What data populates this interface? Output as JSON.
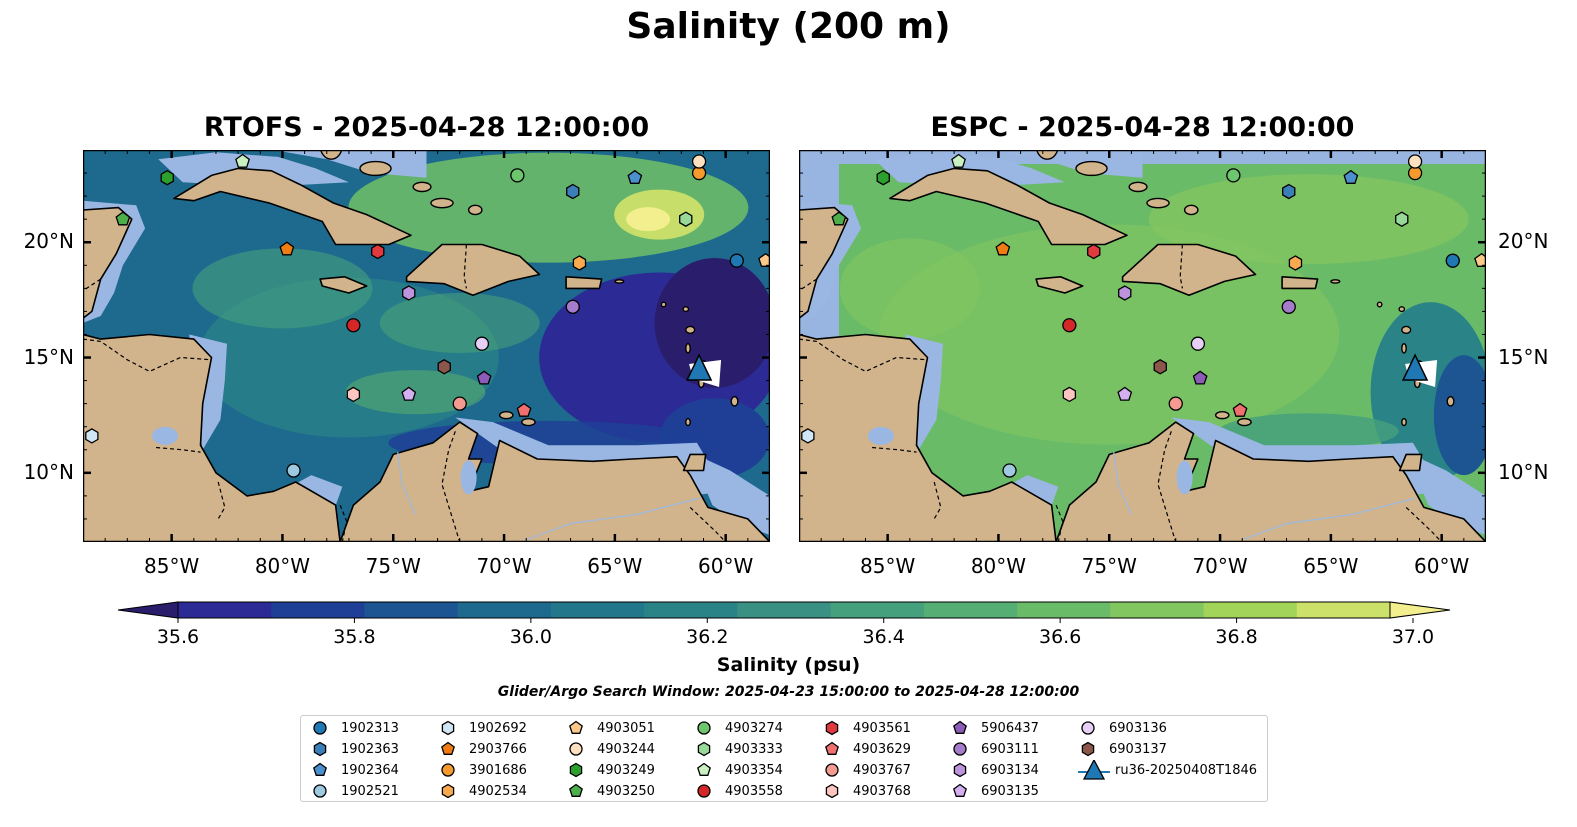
{
  "title": "Salinity (200 m)",
  "panels": [
    {
      "title": "RTOFS - 2025-04-28 12:00:00",
      "model": "rtofs"
    },
    {
      "title": "ESPC - 2025-04-28 12:00:00",
      "model": "espc"
    }
  ],
  "map": {
    "lon_range": [
      -89,
      -58
    ],
    "lat_range": [
      7,
      24
    ],
    "lon_ticks": [
      "85°W",
      "80°W",
      "75°W",
      "70°W",
      "65°W",
      "60°W"
    ],
    "lon_tick_values": [
      -85,
      -80,
      -75,
      -70,
      -65,
      -60
    ],
    "lat_ticks": [
      "20°N",
      "15°N",
      "10°N"
    ],
    "lat_tick_values": [
      20,
      15,
      10
    ]
  },
  "colorbar": {
    "label": "Salinity (psu)",
    "ticks": [
      "35.6",
      "35.8",
      "36.0",
      "36.2",
      "36.4",
      "36.6",
      "36.8",
      "37.0"
    ],
    "tick_values": [
      35.6,
      35.8,
      36.0,
      36.2,
      36.4,
      36.6,
      36.8,
      37.0
    ],
    "range": [
      35.5,
      37.0
    ],
    "colors": [
      "#2a1d6b",
      "#2c2a94",
      "#1f3f96",
      "#1c5592",
      "#1e6a8e",
      "#22778b",
      "#2a8487",
      "#3a9183",
      "#45a07d",
      "#55ae73",
      "#6abb68",
      "#82c660",
      "#a2d45a",
      "#cce16a",
      "#f3ee8e"
    ]
  },
  "search_window": "Glider/Argo Search Window: 2025-04-23 15:00:00 to 2025-04-28 12:00:00",
  "legend": {
    "items": [
      {
        "label": "1902313",
        "marker": "circle",
        "color": "#1f77b4"
      },
      {
        "label": "1902363",
        "marker": "hexagon",
        "color": "#3a7fb8"
      },
      {
        "label": "1902364",
        "marker": "pentagon",
        "color": "#4a8fce"
      },
      {
        "label": "1902521",
        "marker": "circle",
        "color": "#9ecae1"
      },
      {
        "label": "1902692",
        "marker": "hexagon",
        "color": "#d0e6f5"
      },
      {
        "label": "2903766",
        "marker": "pentagon",
        "color": "#ef7d14"
      },
      {
        "label": "3901686",
        "marker": "circle",
        "color": "#f59a2c"
      },
      {
        "label": "4902534",
        "marker": "hexagon",
        "color": "#f9a94f"
      },
      {
        "label": "4903051",
        "marker": "pentagon",
        "color": "#fbc98a"
      },
      {
        "label": "4903244",
        "marker": "circle",
        "color": "#fde0c0"
      },
      {
        "label": "4903249",
        "marker": "hexagon",
        "color": "#2ca02c"
      },
      {
        "label": "4903250",
        "marker": "pentagon",
        "color": "#4caf4c"
      },
      {
        "label": "4903274",
        "marker": "circle",
        "color": "#6dc66d"
      },
      {
        "label": "4903333",
        "marker": "hexagon",
        "color": "#98d898"
      },
      {
        "label": "4903354",
        "marker": "pentagon",
        "color": "#c8f0c0"
      },
      {
        "label": "4903558",
        "marker": "circle",
        "color": "#d62728"
      },
      {
        "label": "4903561",
        "marker": "hexagon",
        "color": "#e0393e"
      },
      {
        "label": "4903629",
        "marker": "pentagon",
        "color": "#f07070"
      },
      {
        "label": "4903767",
        "marker": "circle",
        "color": "#f59a90"
      },
      {
        "label": "4903768",
        "marker": "hexagon",
        "color": "#fcc5c0"
      },
      {
        "label": "5906437",
        "marker": "pentagon",
        "color": "#8c5cb8"
      },
      {
        "label": "6903111",
        "marker": "circle",
        "color": "#a57ccb"
      },
      {
        "label": "6903134",
        "marker": "hexagon",
        "color": "#bb94dd"
      },
      {
        "label": "6903135",
        "marker": "pentagon",
        "color": "#d4b0f0"
      },
      {
        "label": "6903136",
        "marker": "circle",
        "color": "#e8cff8"
      },
      {
        "label": "6903137",
        "marker": "hexagon",
        "color": "#8c564b"
      },
      {
        "label": "ru36-20250408T1846",
        "marker": "triangle",
        "color": "#1f77b4"
      }
    ]
  },
  "floats": [
    {
      "id": "1902313",
      "lon": -59.5,
      "lat": 19.2
    },
    {
      "id": "1902363",
      "lon": -66.9,
      "lat": 22.2
    },
    {
      "id": "1902364",
      "lon": -64.1,
      "lat": 22.8
    },
    {
      "id": "1902521",
      "lon": -79.5,
      "lat": 10.1
    },
    {
      "id": "1902692",
      "lon": -88.6,
      "lat": 11.6
    },
    {
      "id": "2903766",
      "lon": -79.8,
      "lat": 19.7
    },
    {
      "id": "3901686",
      "lon": -61.2,
      "lat": 23.0
    },
    {
      "id": "4902534",
      "lon": -66.6,
      "lat": 19.1
    },
    {
      "id": "4903051",
      "lon": -58.2,
      "lat": 19.2
    },
    {
      "id": "4903244",
      "lon": -61.2,
      "lat": 23.5
    },
    {
      "id": "4903249",
      "lon": -85.2,
      "lat": 22.8
    },
    {
      "id": "4903250",
      "lon": -87.2,
      "lat": 21.0
    },
    {
      "id": "4903274",
      "lon": -69.4,
      "lat": 22.9
    },
    {
      "id": "4903333",
      "lon": -61.8,
      "lat": 21.0
    },
    {
      "id": "4903354",
      "lon": -81.8,
      "lat": 23.5
    },
    {
      "id": "4903558",
      "lon": -76.8,
      "lat": 16.4
    },
    {
      "id": "4903561",
      "lon": -75.7,
      "lat": 19.6
    },
    {
      "id": "4903629",
      "lon": -69.1,
      "lat": 12.7
    },
    {
      "id": "4903767",
      "lon": -72.0,
      "lat": 13.0
    },
    {
      "id": "4903768",
      "lon": -76.8,
      "lat": 13.4
    },
    {
      "id": "5906437",
      "lon": -70.9,
      "lat": 14.1
    },
    {
      "id": "6903111",
      "lon": -66.9,
      "lat": 17.2
    },
    {
      "id": "6903134",
      "lon": -74.3,
      "lat": 17.8
    },
    {
      "id": "6903135",
      "lon": -74.3,
      "lat": 13.4
    },
    {
      "id": "6903136",
      "lon": -71.0,
      "lat": 15.6
    },
    {
      "id": "6903137",
      "lon": -72.7,
      "lat": 14.6
    }
  ],
  "glider": {
    "id": "ru36-20250408T1846",
    "lon": -61.2,
    "lat": 14.5
  }
}
